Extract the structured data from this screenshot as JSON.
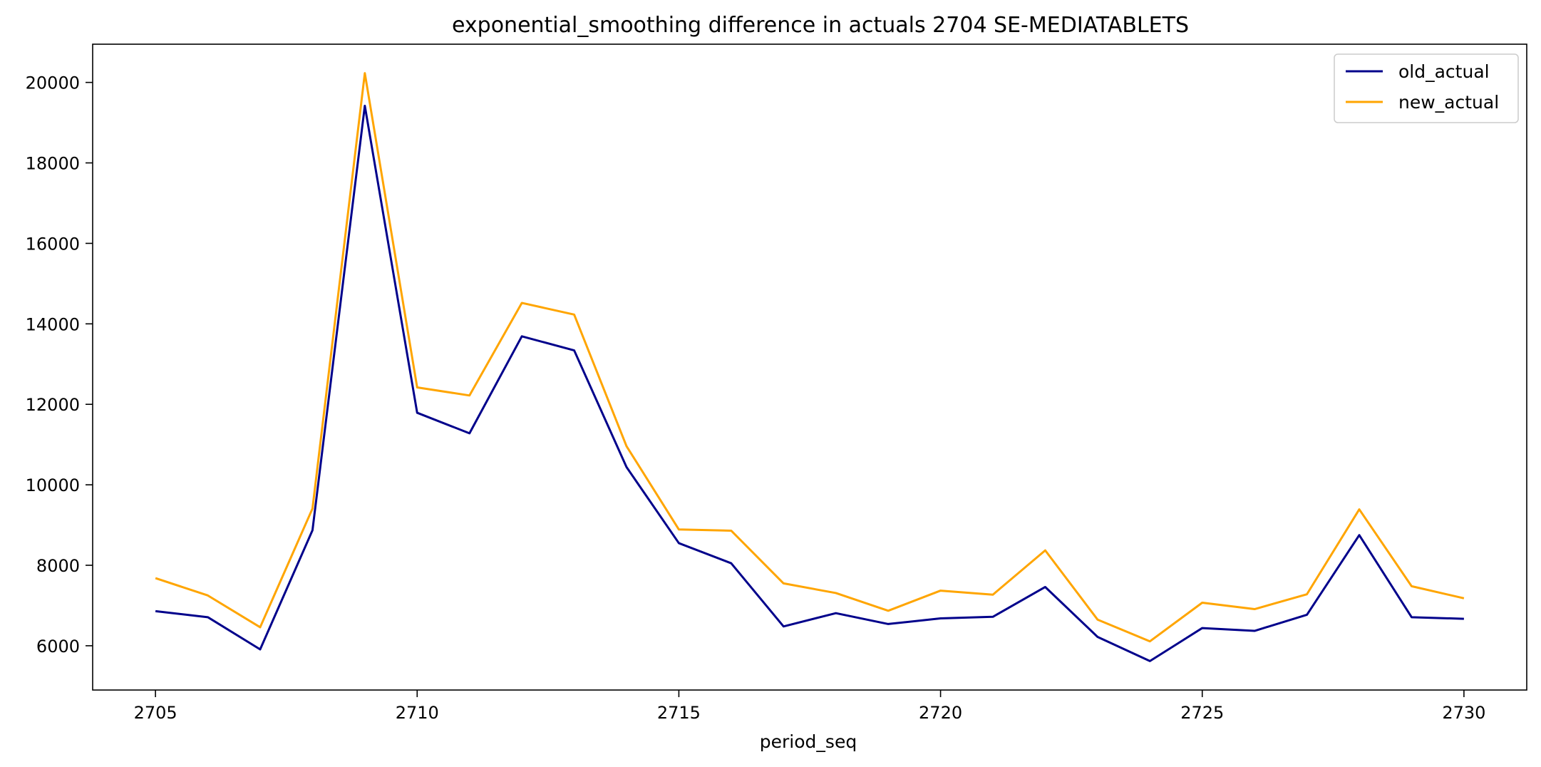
{
  "chart_data": {
    "type": "line",
    "title": "exponential_smoothing difference in actuals 2704 SE-MEDIATABLETS",
    "xlabel": "period_seq",
    "ylabel": "",
    "x": [
      2705,
      2706,
      2707,
      2708,
      2709,
      2710,
      2711,
      2712,
      2713,
      2714,
      2715,
      2716,
      2717,
      2718,
      2719,
      2720,
      2721,
      2722,
      2723,
      2724,
      2725,
      2726,
      2727,
      2728,
      2729,
      2730
    ],
    "xlim": [
      2703.8,
      2731.2
    ],
    "ylim": [
      4900,
      20950
    ],
    "xticks": [
      2705,
      2710,
      2715,
      2720,
      2725,
      2730
    ],
    "yticks": [
      6000,
      8000,
      10000,
      12000,
      14000,
      16000,
      18000,
      20000
    ],
    "xtick_labels": [
      "2705",
      "2710",
      "2715",
      "2720",
      "2725",
      "2730"
    ],
    "ytick_labels": [
      "6000",
      "8000",
      "10000",
      "12000",
      "14000",
      "16000",
      "18000",
      "20000"
    ],
    "grid": false,
    "legend_position": "top-right",
    "series": [
      {
        "name": "old_actual",
        "color": "#00008b",
        "values": [
          6860,
          6710,
          5910,
          8870,
          19420,
          11790,
          11280,
          13690,
          13340,
          10440,
          8550,
          8050,
          6480,
          6810,
          6540,
          6680,
          6720,
          7460,
          6220,
          5620,
          6440,
          6370,
          6770,
          8750,
          6710,
          6670
        ]
      },
      {
        "name": "new_actual",
        "color": "#ffa500",
        "values": [
          7680,
          7250,
          6460,
          9410,
          20230,
          12420,
          12220,
          14520,
          14230,
          10960,
          8890,
          8860,
          7550,
          7310,
          6870,
          7370,
          7270,
          8370,
          6650,
          6110,
          7070,
          6910,
          7280,
          9390,
          7480,
          7180
        ]
      }
    ]
  }
}
